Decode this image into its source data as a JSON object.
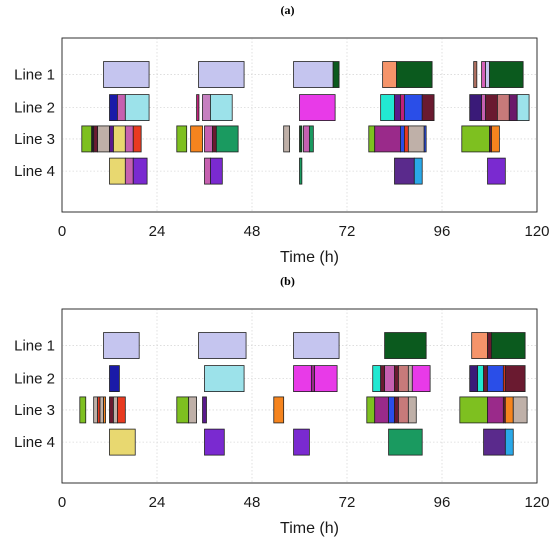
{
  "chart_data": [
    {
      "type": "gantt",
      "panel_label": "(a)",
      "xlabel": "Time (h)",
      "xlim": [
        0,
        120
      ],
      "xticks": [
        0,
        24,
        48,
        72,
        96,
        120
      ],
      "categories": [
        "Line 1",
        "Line 2",
        "Line 3",
        "Line 4"
      ],
      "grid": true,
      "tasks": [
        {
          "line": "Line 1",
          "start": 10.5,
          "end": 22.0,
          "color": "#c5c5ef"
        },
        {
          "line": "Line 1",
          "start": 34.5,
          "end": 46.0,
          "color": "#c5c5ef"
        },
        {
          "line": "Line 1",
          "start": 58.5,
          "end": 68.5,
          "color": "#c5c5ef"
        },
        {
          "line": "Line 1",
          "start": 68.5,
          "end": 70.0,
          "color": "#0b5a1e"
        },
        {
          "line": "Line 1",
          "start": 81.0,
          "end": 84.5,
          "color": "#f5946a"
        },
        {
          "line": "Line 1",
          "start": 84.5,
          "end": 93.5,
          "color": "#0b5a1e"
        },
        {
          "line": "Line 1",
          "start": 104.0,
          "end": 104.8,
          "color": "#b07060"
        },
        {
          "line": "Line 1",
          "start": 106.0,
          "end": 107.0,
          "color": "#d460b8"
        },
        {
          "line": "Line 1",
          "start": 107.0,
          "end": 108.0,
          "color": "#c5c5ef"
        },
        {
          "line": "Line 1",
          "start": 108.0,
          "end": 116.5,
          "color": "#0b5a1e"
        },
        {
          "line": "Line 2",
          "start": 12.0,
          "end": 14.0,
          "color": "#1a1aa8"
        },
        {
          "line": "Line 2",
          "start": 14.0,
          "end": 16.0,
          "color": "#c660b0"
        },
        {
          "line": "Line 2",
          "start": 16.0,
          "end": 22.0,
          "color": "#9ce2ea"
        },
        {
          "line": "Line 2",
          "start": 34.0,
          "end": 34.6,
          "color": "#c0207a"
        },
        {
          "line": "Line 2",
          "start": 35.5,
          "end": 37.5,
          "color": "#c680c0"
        },
        {
          "line": "Line 2",
          "start": 37.5,
          "end": 43.0,
          "color": "#9ce2ea"
        },
        {
          "line": "Line 2",
          "start": 60.0,
          "end": 69.0,
          "color": "#e83ae8"
        },
        {
          "line": "Line 2",
          "start": 80.5,
          "end": 84.0,
          "color": "#22e8d2"
        },
        {
          "line": "Line 2",
          "start": 84.0,
          "end": 85.5,
          "color": "#5a1a8c"
        },
        {
          "line": "Line 2",
          "start": 85.5,
          "end": 86.5,
          "color": "#c0207a"
        },
        {
          "line": "Line 2",
          "start": 86.5,
          "end": 91.0,
          "color": "#2a4ee8"
        },
        {
          "line": "Line 2",
          "start": 91.0,
          "end": 94.0,
          "color": "#6a1a30"
        },
        {
          "line": "Line 2",
          "start": 103.0,
          "end": 106.0,
          "color": "#3a1a78"
        },
        {
          "line": "Line 2",
          "start": 106.0,
          "end": 107.0,
          "color": "#c660b0"
        },
        {
          "line": "Line 2",
          "start": 107.0,
          "end": 110.0,
          "color": "#6a1a30"
        },
        {
          "line": "Line 2",
          "start": 110.0,
          "end": 113.0,
          "color": "#c77a7a"
        },
        {
          "line": "Line 2",
          "start": 113.0,
          "end": 115.0,
          "color": "#6a1a6a"
        },
        {
          "line": "Line 2",
          "start": 115.0,
          "end": 118.0,
          "color": "#9ce2ea"
        },
        {
          "line": "Line 3",
          "start": 5.0,
          "end": 7.5,
          "color": "#7ec020"
        },
        {
          "line": "Line 3",
          "start": 7.5,
          "end": 8.0,
          "color": "#202020"
        },
        {
          "line": "Line 3",
          "start": 8.0,
          "end": 9.0,
          "color": "#6a1a30"
        },
        {
          "line": "Line 3",
          "start": 9.0,
          "end": 12.0,
          "color": "#bfb0a8"
        },
        {
          "line": "Line 3",
          "start": 12.0,
          "end": 13.0,
          "color": "#5a1a8c"
        },
        {
          "line": "Line 3",
          "start": 13.0,
          "end": 16.0,
          "color": "#e8d870"
        },
        {
          "line": "Line 3",
          "start": 16.0,
          "end": 18.0,
          "color": "#c660b0"
        },
        {
          "line": "Line 3",
          "start": 18.0,
          "end": 20.0,
          "color": "#e83a20"
        },
        {
          "line": "Line 3",
          "start": 29.0,
          "end": 31.5,
          "color": "#7ec020"
        },
        {
          "line": "Line 3",
          "start": 32.5,
          "end": 35.5,
          "color": "#f5841e"
        },
        {
          "line": "Line 3",
          "start": 36.0,
          "end": 38.0,
          "color": "#c660b0"
        },
        {
          "line": "Line 3",
          "start": 38.0,
          "end": 39.0,
          "color": "#6a1a30"
        },
        {
          "line": "Line 3",
          "start": 39.0,
          "end": 44.5,
          "color": "#1a9a60"
        },
        {
          "line": "Line 3",
          "start": 56.0,
          "end": 57.5,
          "color": "#bfb0a8"
        },
        {
          "line": "Line 3",
          "start": 60.0,
          "end": 60.6,
          "color": "#0b5a1e"
        },
        {
          "line": "Line 3",
          "start": 61.0,
          "end": 62.5,
          "color": "#c660b0"
        },
        {
          "line": "Line 3",
          "start": 62.5,
          "end": 63.5,
          "color": "#1a9a60"
        },
        {
          "line": "Line 3",
          "start": 77.5,
          "end": 79.0,
          "color": "#7ec020"
        },
        {
          "line": "Line 3",
          "start": 79.0,
          "end": 85.5,
          "color": "#9a2a8a"
        },
        {
          "line": "Line 3",
          "start": 85.5,
          "end": 86.5,
          "color": "#2a4ee8"
        },
        {
          "line": "Line 3",
          "start": 86.5,
          "end": 87.5,
          "color": "#e83a20"
        },
        {
          "line": "Line 3",
          "start": 87.5,
          "end": 91.5,
          "color": "#bfb0a8"
        },
        {
          "line": "Line 3",
          "start": 91.5,
          "end": 92.0,
          "color": "#2a4ee8"
        },
        {
          "line": "Line 3",
          "start": 101.0,
          "end": 108.0,
          "color": "#7ec020"
        },
        {
          "line": "Line 3",
          "start": 108.0,
          "end": 108.5,
          "color": "#6a1a30"
        },
        {
          "line": "Line 3",
          "start": 108.5,
          "end": 110.5,
          "color": "#f5841e"
        },
        {
          "line": "Line 4",
          "start": 12.0,
          "end": 16.0,
          "color": "#e8d870"
        },
        {
          "line": "Line 4",
          "start": 16.0,
          "end": 18.0,
          "color": "#c660b0"
        },
        {
          "line": "Line 4",
          "start": 18.0,
          "end": 21.5,
          "color": "#7a2ad0"
        },
        {
          "line": "Line 4",
          "start": 36.0,
          "end": 37.5,
          "color": "#c660b0"
        },
        {
          "line": "Line 4",
          "start": 37.5,
          "end": 40.5,
          "color": "#7a2ad0"
        },
        {
          "line": "Line 4",
          "start": 60.0,
          "end": 60.6,
          "color": "#1a9a60"
        },
        {
          "line": "Line 4",
          "start": 84.0,
          "end": 89.0,
          "color": "#5a2a8c"
        },
        {
          "line": "Line 4",
          "start": 89.0,
          "end": 91.0,
          "color": "#2aa8e8"
        },
        {
          "line": "Line 4",
          "start": 107.5,
          "end": 112.0,
          "color": "#7a2ad0"
        }
      ]
    },
    {
      "type": "gantt",
      "panel_label": "(b)",
      "xlabel": "Time (h)",
      "xlim": [
        0,
        120
      ],
      "xticks": [
        0,
        24,
        48,
        72,
        96,
        120
      ],
      "categories": [
        "Line 1",
        "Line 2",
        "Line 3",
        "Line 4"
      ],
      "grid": true,
      "tasks": [
        {
          "line": "Line 1",
          "start": 10.5,
          "end": 19.5,
          "color": "#c5c5ef"
        },
        {
          "line": "Line 1",
          "start": 34.5,
          "end": 46.5,
          "color": "#c5c5ef"
        },
        {
          "line": "Line 1",
          "start": 58.5,
          "end": 70.0,
          "color": "#c5c5ef"
        },
        {
          "line": "Line 1",
          "start": 81.5,
          "end": 92.0,
          "color": "#0b5a1e"
        },
        {
          "line": "Line 1",
          "start": 103.5,
          "end": 107.5,
          "color": "#f5946a"
        },
        {
          "line": "Line 1",
          "start": 107.5,
          "end": 108.5,
          "color": "#6a1a30"
        },
        {
          "line": "Line 1",
          "start": 108.5,
          "end": 117.0,
          "color": "#0b5a1e"
        },
        {
          "line": "Line 2",
          "start": 12.0,
          "end": 14.5,
          "color": "#1a1aa8"
        },
        {
          "line": "Line 2",
          "start": 36.0,
          "end": 46.0,
          "color": "#9ce2ea"
        },
        {
          "line": "Line 2",
          "start": 58.5,
          "end": 63.0,
          "color": "#e83ae8"
        },
        {
          "line": "Line 2",
          "start": 63.0,
          "end": 63.8,
          "color": "#9a2a8a"
        },
        {
          "line": "Line 2",
          "start": 63.8,
          "end": 69.5,
          "color": "#e83ae8"
        },
        {
          "line": "Line 2",
          "start": 78.5,
          "end": 80.5,
          "color": "#22e8d2"
        },
        {
          "line": "Line 2",
          "start": 80.5,
          "end": 81.5,
          "color": "#6a1a30"
        },
        {
          "line": "Line 2",
          "start": 81.5,
          "end": 84.0,
          "color": "#c660b0"
        },
        {
          "line": "Line 2",
          "start": 84.0,
          "end": 85.0,
          "color": "#6a1a30"
        },
        {
          "line": "Line 2",
          "start": 85.0,
          "end": 87.5,
          "color": "#c77a7a"
        },
        {
          "line": "Line 2",
          "start": 87.5,
          "end": 88.5,
          "color": "#bfb0a8"
        },
        {
          "line": "Line 2",
          "start": 88.5,
          "end": 93.0,
          "color": "#e83ae8"
        },
        {
          "line": "Line 2",
          "start": 103.0,
          "end": 105.0,
          "color": "#3a1a78"
        },
        {
          "line": "Line 2",
          "start": 105.0,
          "end": 106.5,
          "color": "#22e8d2"
        },
        {
          "line": "Line 2",
          "start": 106.5,
          "end": 107.5,
          "color": "#6a1a30"
        },
        {
          "line": "Line 2",
          "start": 107.5,
          "end": 111.5,
          "color": "#2a4ee8"
        },
        {
          "line": "Line 2",
          "start": 111.5,
          "end": 112.0,
          "color": "#e83a20"
        },
        {
          "line": "Line 2",
          "start": 112.0,
          "end": 117.0,
          "color": "#6a1a30"
        },
        {
          "line": "Line 3",
          "start": 4.5,
          "end": 6.0,
          "color": "#7ec020"
        },
        {
          "line": "Line 3",
          "start": 8.0,
          "end": 9.0,
          "color": "#bfb0a8"
        },
        {
          "line": "Line 3",
          "start": 9.0,
          "end": 9.6,
          "color": "#e83a20"
        },
        {
          "line": "Line 3",
          "start": 9.6,
          "end": 10.5,
          "color": "#bfb0a8"
        },
        {
          "line": "Line 3",
          "start": 10.5,
          "end": 11.0,
          "color": "#f5841e"
        },
        {
          "line": "Line 3",
          "start": 12.0,
          "end": 13.0,
          "color": "#6a1a30"
        },
        {
          "line": "Line 3",
          "start": 13.0,
          "end": 14.0,
          "color": "#bfb0a8"
        },
        {
          "line": "Line 3",
          "start": 14.0,
          "end": 16.0,
          "color": "#e83a20"
        },
        {
          "line": "Line 3",
          "start": 29.0,
          "end": 32.0,
          "color": "#7ec020"
        },
        {
          "line": "Line 3",
          "start": 32.0,
          "end": 34.0,
          "color": "#bfb0a8"
        },
        {
          "line": "Line 3",
          "start": 35.5,
          "end": 36.5,
          "color": "#5a1a8c"
        },
        {
          "line": "Line 3",
          "start": 53.5,
          "end": 56.0,
          "color": "#f5841e"
        },
        {
          "line": "Line 3",
          "start": 77.0,
          "end": 79.0,
          "color": "#7ec020"
        },
        {
          "line": "Line 3",
          "start": 79.0,
          "end": 82.5,
          "color": "#9a2a8a"
        },
        {
          "line": "Line 3",
          "start": 82.5,
          "end": 84.0,
          "color": "#2a4ee8"
        },
        {
          "line": "Line 3",
          "start": 84.0,
          "end": 85.0,
          "color": "#6a1a30"
        },
        {
          "line": "Line 3",
          "start": 85.0,
          "end": 87.5,
          "color": "#c77a7a"
        },
        {
          "line": "Line 3",
          "start": 87.5,
          "end": 89.5,
          "color": "#bfb0a8"
        },
        {
          "line": "Line 3",
          "start": 100.5,
          "end": 107.5,
          "color": "#7ec020"
        },
        {
          "line": "Line 3",
          "start": 107.5,
          "end": 111.5,
          "color": "#9a2a8a"
        },
        {
          "line": "Line 3",
          "start": 111.5,
          "end": 112.0,
          "color": "#6a1a30"
        },
        {
          "line": "Line 3",
          "start": 112.0,
          "end": 114.0,
          "color": "#f5841e"
        },
        {
          "line": "Line 3",
          "start": 114.0,
          "end": 117.5,
          "color": "#bfb0a8"
        },
        {
          "line": "Line 4",
          "start": 12.0,
          "end": 18.5,
          "color": "#e8d870"
        },
        {
          "line": "Line 4",
          "start": 36.0,
          "end": 41.0,
          "color": "#7a2ad0"
        },
        {
          "line": "Line 4",
          "start": 58.5,
          "end": 62.5,
          "color": "#7a2ad0"
        },
        {
          "line": "Line 4",
          "start": 82.5,
          "end": 91.0,
          "color": "#1a9a60"
        },
        {
          "line": "Line 4",
          "start": 106.5,
          "end": 112.0,
          "color": "#5a2a8c"
        },
        {
          "line": "Line 4",
          "start": 112.0,
          "end": 114.0,
          "color": "#2aa8e8"
        }
      ]
    }
  ]
}
